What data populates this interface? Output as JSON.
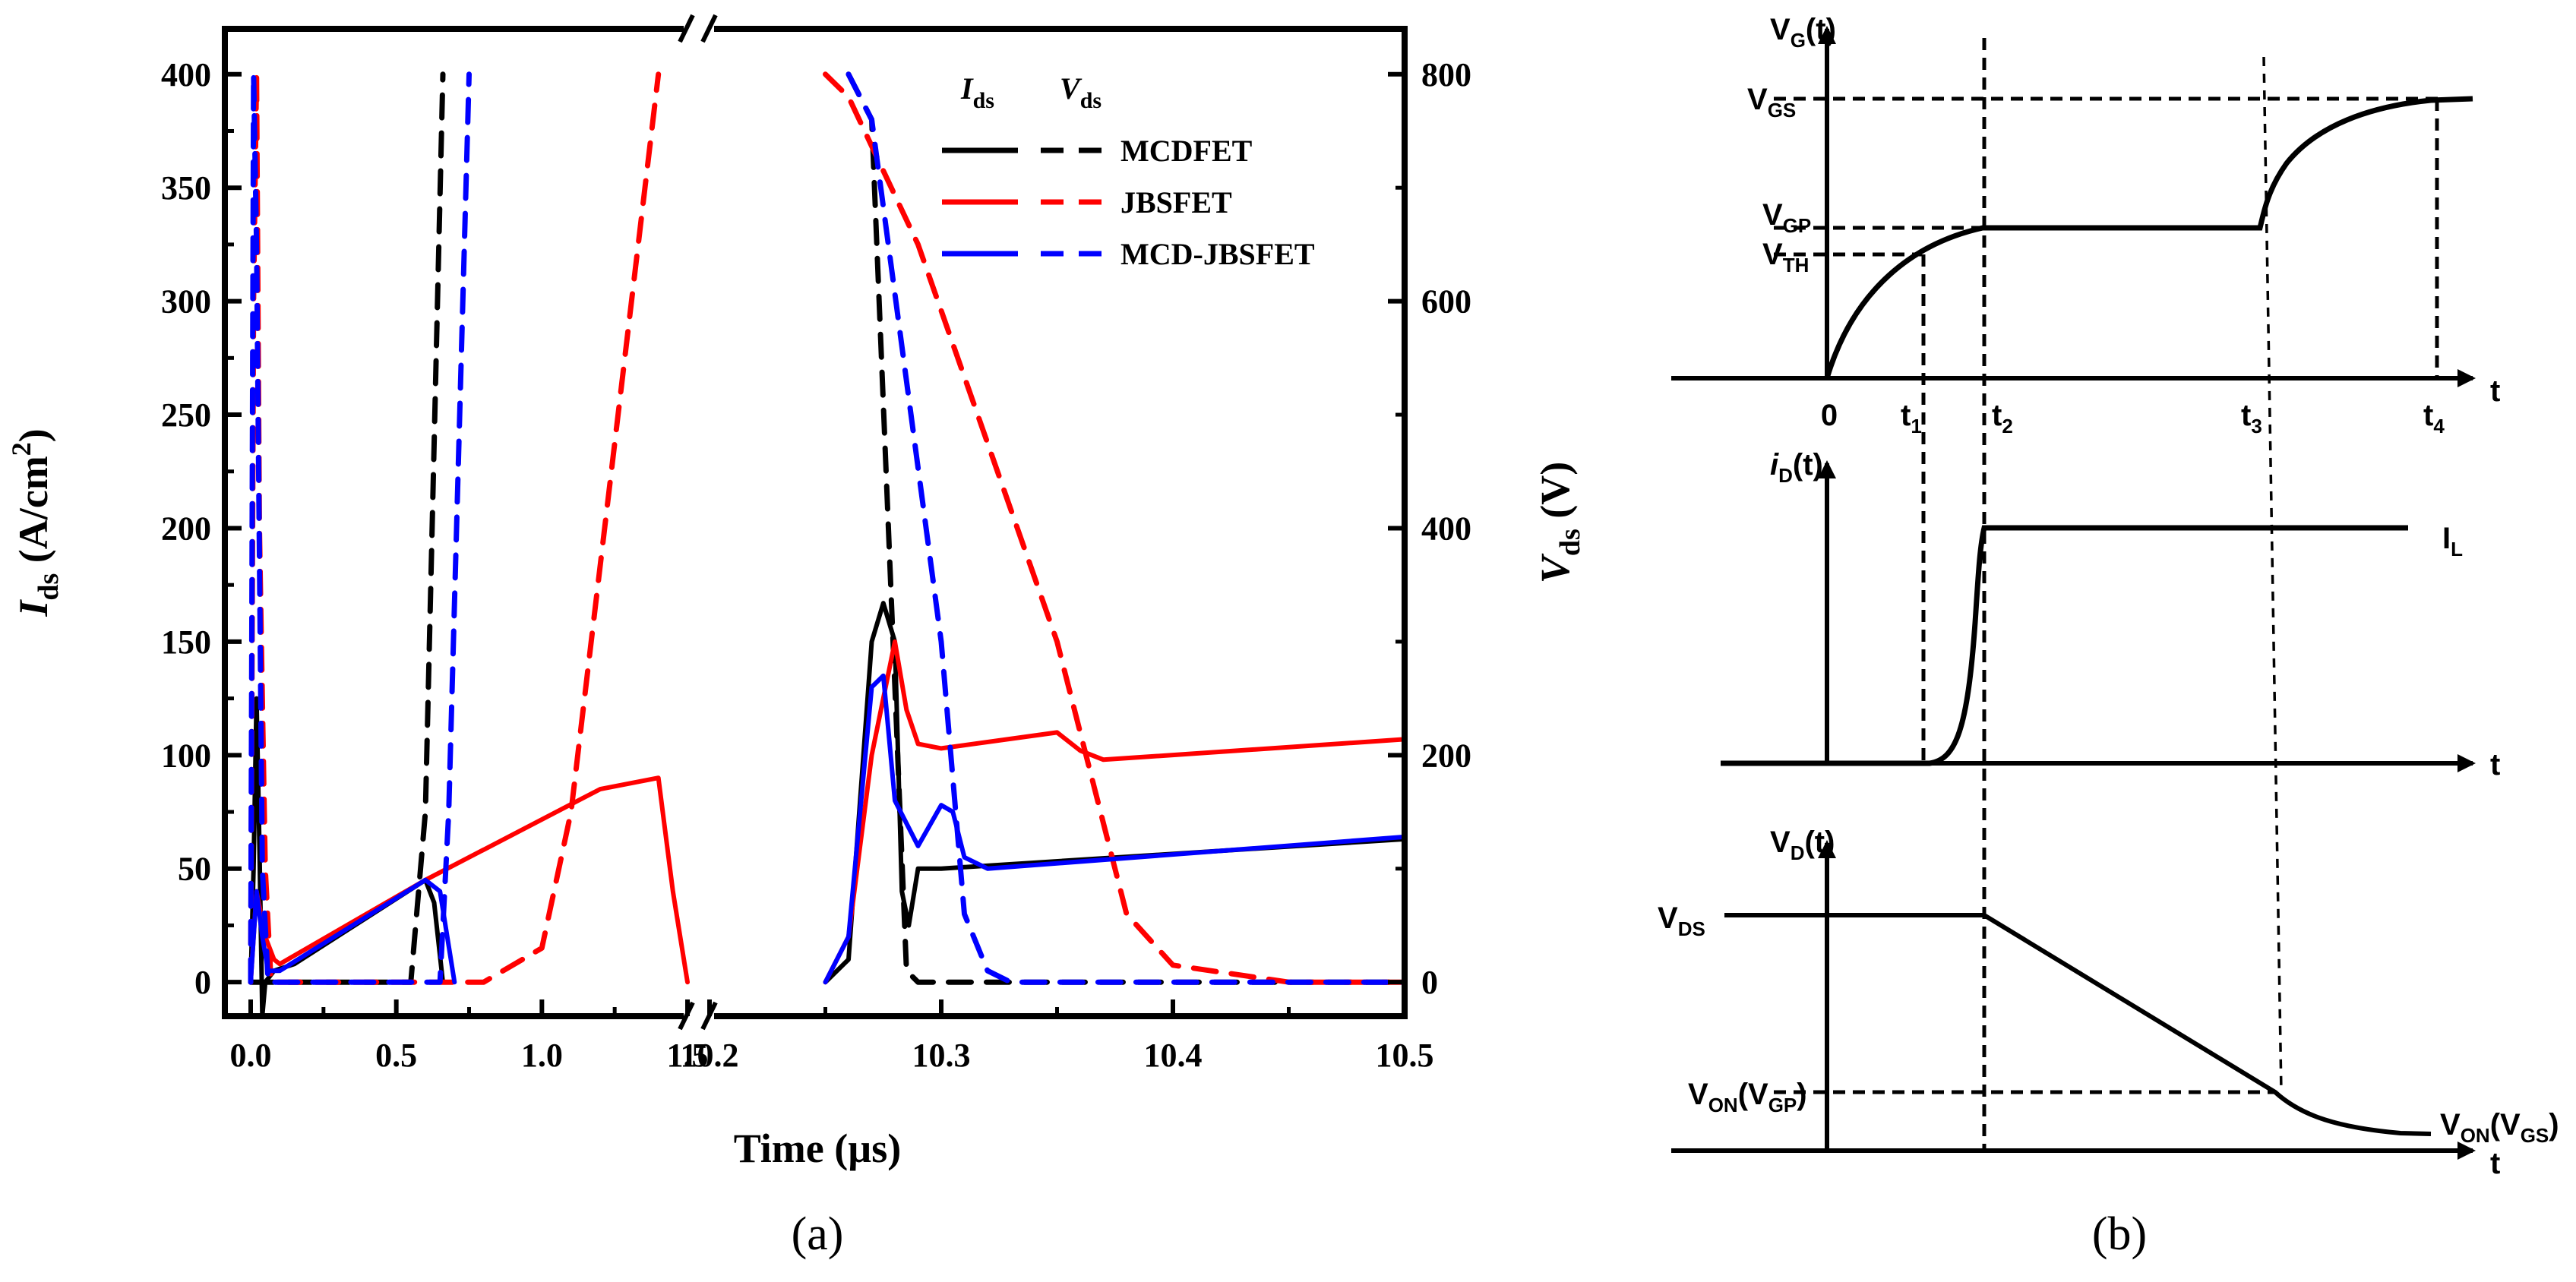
{
  "chart_data": [
    {
      "panel": "(a)",
      "type": "line",
      "xlabel": "Time (µs)",
      "ylabel_left": "I",
      "ylabel_left_sub": "ds",
      "ylabel_left_unit": " (A/cm",
      "ylabel_left_sup": "2",
      "ylabel_left_close": ")",
      "ylabel_right": "V",
      "ylabel_right_sub": "ds",
      "ylabel_right_unit": " (V)",
      "x_break": "broken axis between 1.5 and 10.2 µs",
      "x_ticks_left": [
        "0.0",
        "0.5",
        "1.0",
        "1.5"
      ],
      "x_ticks_right": [
        "10.2",
        "10.3",
        "10.4",
        "10.5"
      ],
      "ylim_left": [
        -15,
        420
      ],
      "yticks_left": [
        "0",
        "50",
        "100",
        "150",
        "200",
        "250",
        "300",
        "350",
        "400"
      ],
      "ylim_right": [
        -30,
        840
      ],
      "yticks_right": [
        "0",
        "200",
        "400",
        "600",
        "800"
      ],
      "legend": {
        "placement": "top-right",
        "col1_main": "I",
        "col1_sub": "ds",
        "col2_main": "V",
        "col2_sub": "ds",
        "entries": [
          {
            "name": "MCDFET",
            "color": "#000000"
          },
          {
            "name": "JBSFET",
            "color": "#ff0000"
          },
          {
            "name": "MCD-JBSFET",
            "color": "#0000ff"
          }
        ]
      },
      "series": [
        {
          "name": "MCDFET",
          "quantity": "I_ds",
          "style": "solid",
          "color": "#000000",
          "points": [
            [
              0,
              0
            ],
            [
              0.01,
              50
            ],
            [
              0.02,
              125
            ],
            [
              0.03,
              60
            ],
            [
              0.04,
              -15
            ],
            [
              0.05,
              0
            ],
            [
              0.08,
              5
            ],
            [
              0.15,
              8
            ],
            [
              0.6,
              45
            ],
            [
              0.63,
              35
            ],
            [
              0.66,
              0
            ],
            [
              10.25,
              0
            ],
            [
              10.26,
              10
            ],
            [
              10.27,
              150
            ],
            [
              10.275,
              167
            ],
            [
              10.28,
              150
            ],
            [
              10.283,
              40
            ],
            [
              10.286,
              25
            ],
            [
              10.29,
              50
            ],
            [
              10.3,
              50
            ],
            [
              10.5,
              63
            ]
          ]
        },
        {
          "name": "MCDFET",
          "quantity": "V_ds",
          "style": "dashed",
          "color": "#000000",
          "points": [
            [
              0,
              0
            ],
            [
              0.55,
              0
            ],
            [
              0.6,
              150
            ],
            [
              0.66,
              800
            ],
            [
              10.26,
              800
            ],
            [
              10.27,
              760
            ],
            [
              10.285,
              10
            ],
            [
              10.29,
              0
            ],
            [
              10.5,
              0
            ]
          ]
        },
        {
          "name": "JBSFET",
          "quantity": "I_ds",
          "style": "solid",
          "color": "#ff0000",
          "points": [
            [
              0,
              0
            ],
            [
              0.02,
              40
            ],
            [
              0.05,
              20
            ],
            [
              0.08,
              10
            ],
            [
              0.1,
              8
            ],
            [
              0.6,
              45
            ],
            [
              1.2,
              85
            ],
            [
              1.4,
              90
            ],
            [
              1.45,
              40
            ],
            [
              1.5,
              0
            ],
            [
              10.25,
              0
            ],
            [
              10.26,
              20
            ],
            [
              10.27,
              100
            ],
            [
              10.28,
              150
            ],
            [
              10.285,
              120
            ],
            [
              10.29,
              105
            ],
            [
              10.3,
              103
            ],
            [
              10.35,
              110
            ],
            [
              10.36,
              102
            ],
            [
              10.37,
              98
            ],
            [
              10.5,
              107
            ]
          ]
        },
        {
          "name": "JBSFET",
          "quantity": "V_ds",
          "style": "dashed",
          "color": "#ff0000",
          "points": [
            [
              0,
              0
            ],
            [
              0.01,
              600
            ],
            [
              0.02,
              800
            ],
            [
              0.03,
              400
            ],
            [
              0.05,
              100
            ],
            [
              0.07,
              0
            ],
            [
              0.8,
              0
            ],
            [
              1.0,
              30
            ],
            [
              1.1,
              150
            ],
            [
              1.4,
              800
            ],
            [
              10.25,
              800
            ],
            [
              10.26,
              780
            ],
            [
              10.29,
              650
            ],
            [
              10.35,
              300
            ],
            [
              10.38,
              60
            ],
            [
              10.4,
              15
            ],
            [
              10.45,
              0
            ],
            [
              10.5,
              0
            ]
          ]
        },
        {
          "name": "MCD-JBSFET",
          "quantity": "I_ds",
          "style": "solid",
          "color": "#0000ff",
          "points": [
            [
              0,
              0
            ],
            [
              0.02,
              40
            ],
            [
              0.04,
              20
            ],
            [
              0.06,
              5
            ],
            [
              0.1,
              5
            ],
            [
              0.6,
              45
            ],
            [
              0.65,
              40
            ],
            [
              0.7,
              0
            ],
            [
              10.25,
              0
            ],
            [
              10.26,
              20
            ],
            [
              10.27,
              130
            ],
            [
              10.275,
              135
            ],
            [
              10.28,
              80
            ],
            [
              10.29,
              60
            ],
            [
              10.3,
              78
            ],
            [
              10.305,
              75
            ],
            [
              10.31,
              55
            ],
            [
              10.32,
              50
            ],
            [
              10.5,
              64
            ]
          ]
        },
        {
          "name": "MCD-JBSFET",
          "quantity": "V_ds",
          "style": "dashed",
          "color": "#0000ff",
          "points": [
            [
              0,
              0
            ],
            [
              0.01,
              800
            ],
            [
              0.02,
              650
            ],
            [
              0.04,
              100
            ],
            [
              0.06,
              0
            ],
            [
              0.65,
              0
            ],
            [
              0.68,
              150
            ],
            [
              0.75,
              800
            ],
            [
              10.26,
              800
            ],
            [
              10.27,
              760
            ],
            [
              10.3,
              300
            ],
            [
              10.31,
              60
            ],
            [
              10.32,
              10
            ],
            [
              10.33,
              0
            ],
            [
              10.5,
              0
            ]
          ]
        }
      ]
    },
    {
      "panel": "(b)",
      "type": "line",
      "description_kind": "idealized switching waveforms",
      "time_ticks": [
        "0",
        "t",
        "t",
        "t",
        "t"
      ],
      "time_tick_subs": [
        "",
        "1",
        "2",
        "3",
        "4"
      ],
      "axis_label_t": "t",
      "subplots": [
        {
          "ylabel": "V",
          "ylabel_sub": "G",
          "ylabel_suffix": "(t)",
          "levels": [
            {
              "label": "V",
              "sub": "GS"
            },
            {
              "label": "V",
              "sub": "GP"
            },
            {
              "label": "V",
              "sub": "TH"
            }
          ]
        },
        {
          "ylabel": "i",
          "ylabel_sub": "D",
          "ylabel_suffix": "(t)",
          "levels": [
            {
              "label": "I",
              "sub": "L"
            }
          ]
        },
        {
          "ylabel": "V",
          "ylabel_sub": "D",
          "ylabel_suffix": "(t)",
          "levels": [
            {
              "label": "V",
              "sub": "DS"
            },
            {
              "label": "V",
              "sub": "ON",
              "suffix": "(V",
              "sub2": "GP",
              "close": ")"
            },
            {
              "label": "V",
              "sub": "ON",
              "suffix": "(V",
              "sub2": "GS",
              "close": ")"
            }
          ]
        }
      ]
    }
  ],
  "panel_labels": {
    "a": "(a)",
    "b": "(b)"
  }
}
